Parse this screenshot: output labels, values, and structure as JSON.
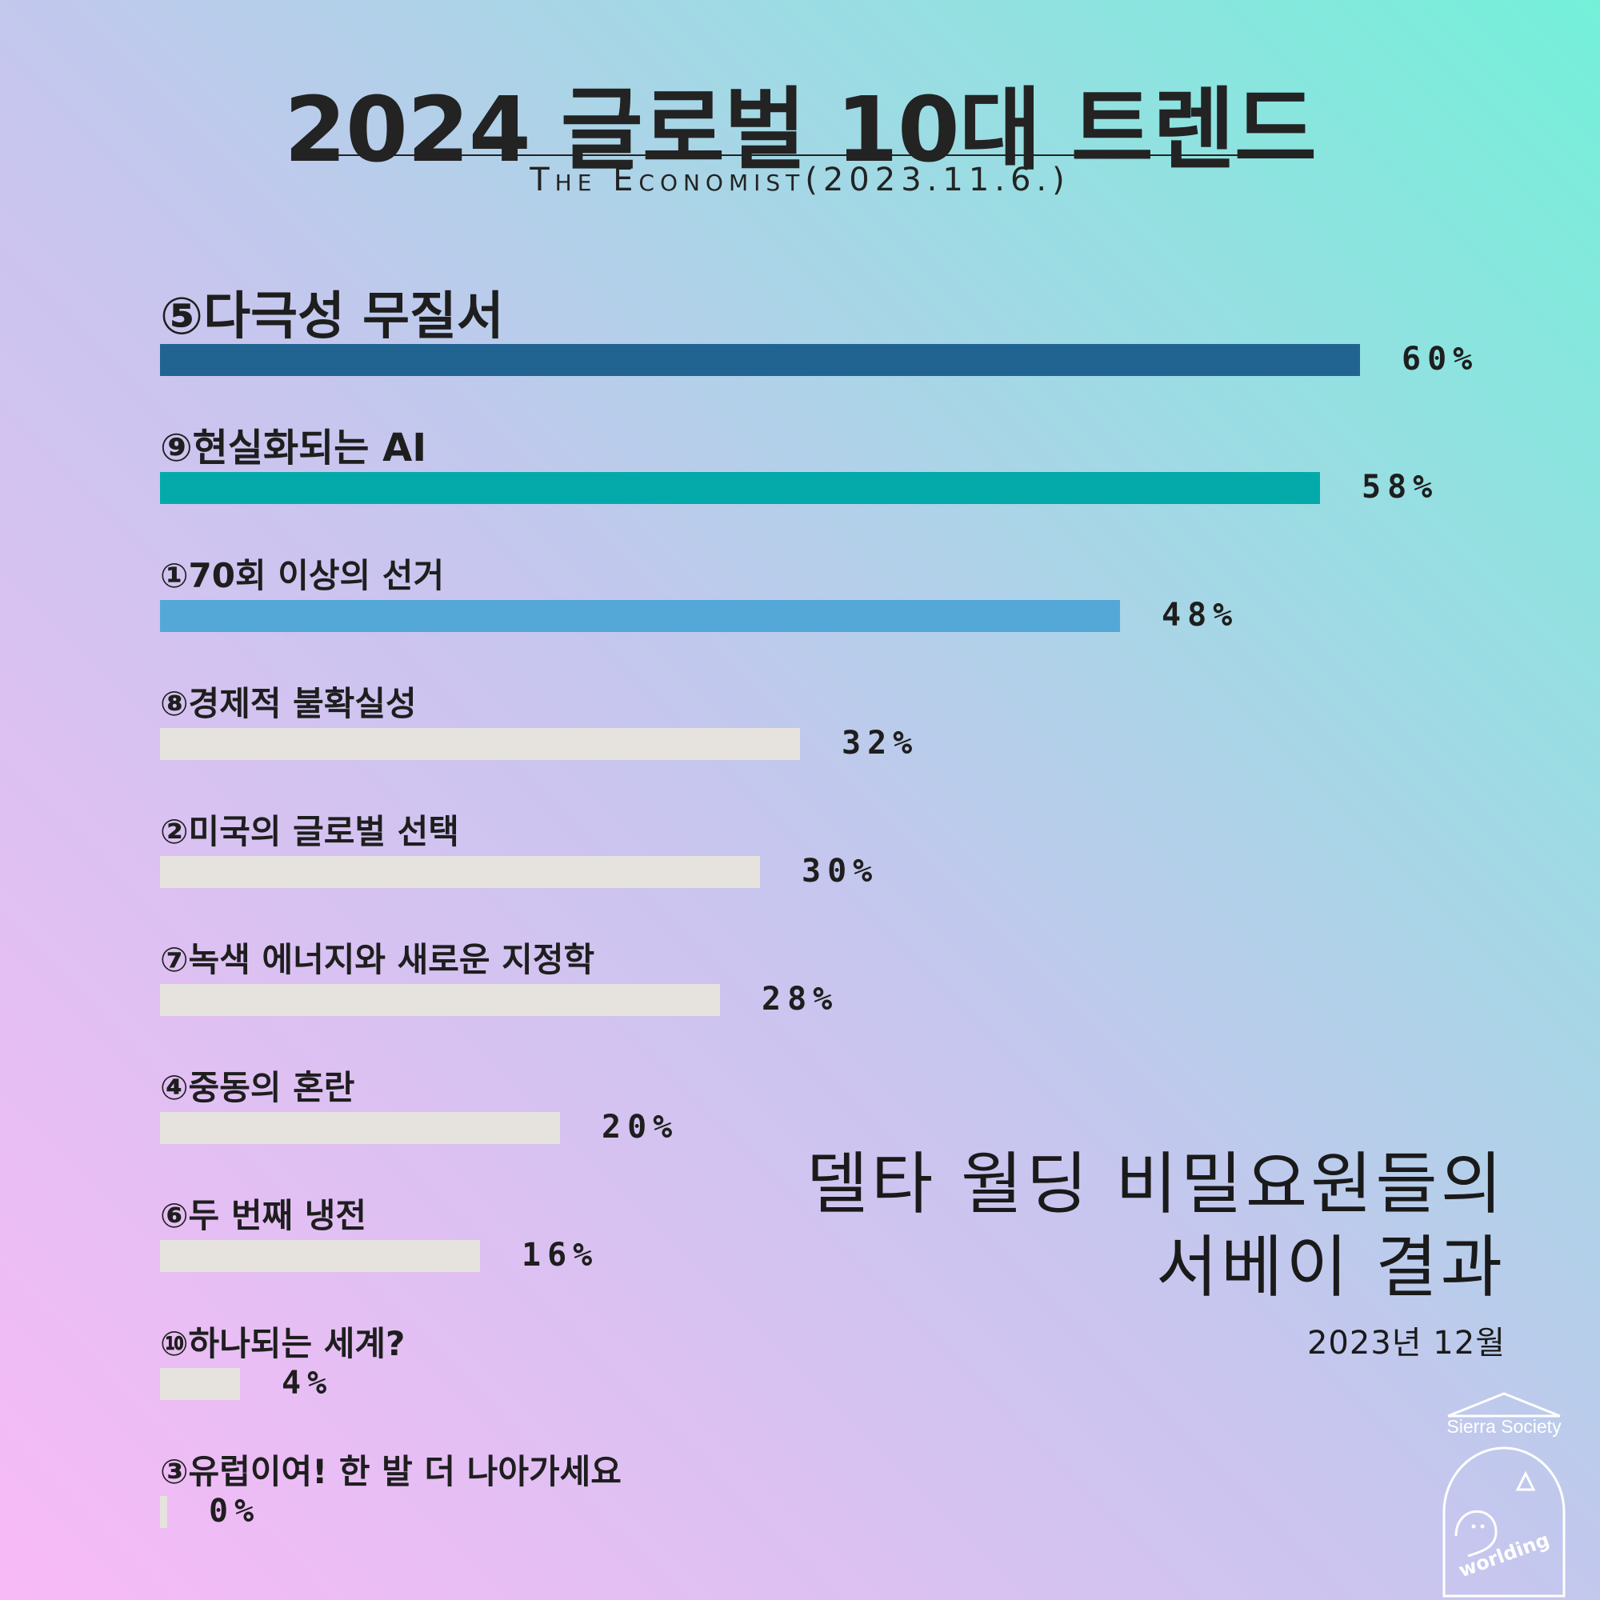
{
  "header": {
    "title": "2024 글로벌 10대 트렌드",
    "subtitle": "The Economist(2023.11.6.)"
  },
  "chart_data": {
    "type": "bar",
    "orientation": "horizontal",
    "unit": "%",
    "xlim": [
      0,
      60
    ],
    "categories": [
      "⑤다극성 무질서",
      "⑨현실화되는 AI",
      "①70회 이상의 선거",
      "⑧경제적 불확실성",
      "②미국의 글로벌 선택",
      "⑦녹색 에너지와 새로운 지정학",
      "④중동의 혼란",
      "⑥두 번째 냉전",
      "⑩하나되는 세계?",
      "③유럽이여! 한 발 더 나아가세요"
    ],
    "values": [
      60,
      58,
      48,
      32,
      30,
      28,
      20,
      16,
      4,
      0
    ],
    "value_labels": [
      "60%",
      "58%",
      "48%",
      "32%",
      "30%",
      "28%",
      "20%",
      "16%",
      "4%",
      "0%"
    ],
    "bar_colors": [
      "#216391",
      "#03aaa9",
      "#53a8d8",
      "#e6e3de",
      "#e6e3de",
      "#e6e3de",
      "#e6e3de",
      "#e6e3de",
      "#e6e3de",
      "#e6e3de"
    ],
    "grid": false,
    "legend": "none"
  },
  "annotation": {
    "line1": "델타 월딩 비밀요원들의",
    "line2": "서베이 결과",
    "date": "2023년 12월"
  },
  "logo": {
    "name": "Sierra Society",
    "sub": "worlding",
    "icon": "sierra-society-logo-icon"
  }
}
